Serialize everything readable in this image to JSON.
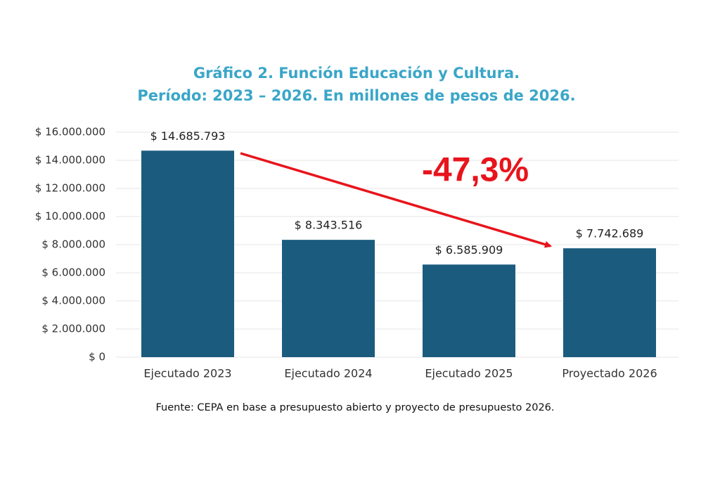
{
  "chart_data": {
    "type": "bar",
    "title": "Gráfico 2. Función Educación y Cultura.",
    "subtitle": "Período: 2023 – 2026. En millones de pesos de 2026.",
    "categories": [
      "Ejecutado 2023",
      "Ejecutado 2024",
      "Ejecutado 2025",
      "Proyectado 2026"
    ],
    "values": [
      14685793,
      8343516,
      6585909,
      7742689
    ],
    "value_labels": [
      "$ 14.685.793",
      "$ 8.343.516",
      "$ 6.585.909",
      "$ 7.742.689"
    ],
    "color": "#1b5c7e",
    "ylim": [
      0,
      16000000
    ],
    "yticks": [
      {
        "value": 0,
        "label": "$ 0"
      },
      {
        "value": 2000000,
        "label": "$ 2.000.000"
      },
      {
        "value": 4000000,
        "label": "$ 4.000.000"
      },
      {
        "value": 6000000,
        "label": "$ 6.000.000"
      },
      {
        "value": 8000000,
        "label": "$ 8.000.000"
      },
      {
        "value": 10000000,
        "label": "$ 10.000.000"
      },
      {
        "value": 12000000,
        "label": "$ 12.000.000"
      },
      {
        "value": 14000000,
        "label": "$ 14.000.000"
      },
      {
        "value": 16000000,
        "label": "$ 16.000.000"
      }
    ],
    "grid": true,
    "annotation": "-47,3%",
    "source": "Fuente: CEPA en base a presupuesto abierto y proyecto de presupuesto 2026."
  }
}
